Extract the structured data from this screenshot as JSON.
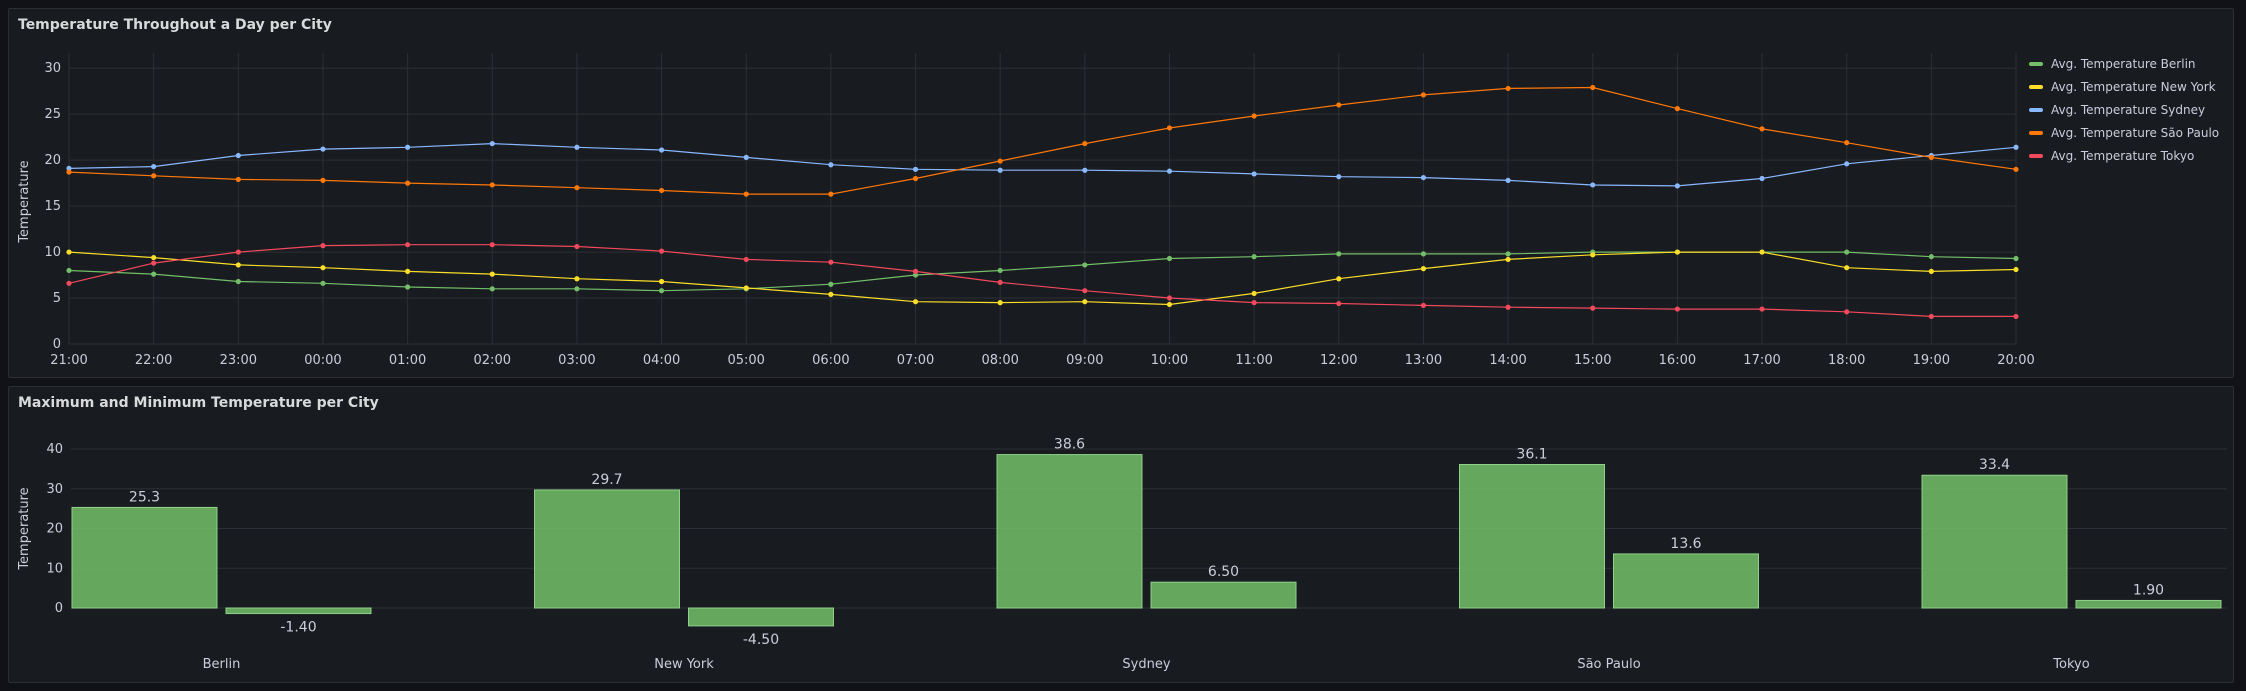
{
  "panels": [
    {
      "title": "Temperature Throughout a Day per City",
      "chart_data": {
        "type": "line",
        "ylabel": "Temperature",
        "xlabel": "",
        "ylim": [
          0,
          31
        ],
        "y_ticks": [
          0,
          5,
          10,
          15,
          20,
          25,
          30
        ],
        "x": [
          "21:00",
          "22:00",
          "23:00",
          "00:00",
          "01:00",
          "02:00",
          "03:00",
          "04:00",
          "05:00",
          "06:00",
          "07:00",
          "08:00",
          "09:00",
          "10:00",
          "11:00",
          "12:00",
          "13:00",
          "14:00",
          "15:00",
          "16:00",
          "17:00",
          "18:00",
          "19:00",
          "20:00"
        ],
        "legend_position": "right",
        "grid": true,
        "series": [
          {
            "name": "Avg. Temperature Berlin",
            "color": "#73bf69",
            "values": [
              8.0,
              7.6,
              6.8,
              6.6,
              6.2,
              6.0,
              6.0,
              5.8,
              6.0,
              6.5,
              7.5,
              8.0,
              8.6,
              9.3,
              9.5,
              9.8,
              9.8,
              9.8,
              10.0,
              10.0,
              10.0,
              10.0,
              9.5,
              9.3
            ]
          },
          {
            "name": "Avg. Temperature New York",
            "color": "#fade2a",
            "values": [
              10.0,
              9.4,
              8.6,
              8.3,
              7.9,
              7.6,
              7.1,
              6.8,
              6.1,
              5.4,
              4.6,
              4.5,
              4.6,
              4.3,
              5.5,
              7.1,
              8.2,
              9.2,
              9.7,
              10.0,
              10.0,
              8.3,
              7.9,
              8.1
            ]
          },
          {
            "name": "Avg. Temperature Sydney",
            "color": "#8ab8ff",
            "values": [
              19.1,
              19.3,
              20.5,
              21.2,
              21.4,
              21.8,
              21.4,
              21.1,
              20.3,
              19.5,
              19.0,
              18.9,
              18.9,
              18.8,
              18.5,
              18.2,
              18.1,
              17.8,
              17.3,
              17.2,
              18.0,
              19.6,
              20.5,
              21.4
            ]
          },
          {
            "name": "Avg. Temperature São Paulo",
            "color": "#ff780a",
            "values": [
              18.7,
              18.3,
              17.9,
              17.8,
              17.5,
              17.3,
              17.0,
              16.7,
              16.3,
              16.3,
              18.0,
              19.9,
              21.8,
              23.5,
              24.8,
              26.0,
              27.1,
              27.8,
              27.9,
              25.6,
              23.4,
              21.9,
              20.3,
              19.0
            ]
          },
          {
            "name": "Avg. Temperature Tokyo",
            "color": "#f2495c",
            "values": [
              6.6,
              8.8,
              10.0,
              10.7,
              10.8,
              10.8,
              10.6,
              10.1,
              9.2,
              8.9,
              7.9,
              6.7,
              5.8,
              5.0,
              4.5,
              4.4,
              4.2,
              4.0,
              3.9,
              3.8,
              3.8,
              3.5,
              3.0,
              3.0
            ]
          }
        ]
      }
    },
    {
      "title": "Maximum and Minimum Temperature per City",
      "chart_data": {
        "type": "bar",
        "ylabel": "Temperature",
        "xlabel": "",
        "ylim": [
          -5,
          43
        ],
        "y_ticks": [
          0,
          10,
          20,
          30,
          40
        ],
        "categories": [
          "Berlin",
          "New York",
          "Sydney",
          "São Paulo",
          "Tokyo"
        ],
        "bar_color": "#73bf69",
        "grid": true,
        "series": [
          {
            "values": [
              25.3,
              29.7,
              38.6,
              36.1,
              33.4
            ],
            "labels": [
              "25.3",
              "29.7",
              "38.6",
              "36.1",
              "33.4"
            ]
          },
          {
            "values": [
              -1.4,
              -4.5,
              6.5,
              13.6,
              1.9
            ],
            "labels": [
              "-1.40",
              "-4.50",
              "6.50",
              "13.6",
              "1.90"
            ]
          }
        ]
      }
    }
  ]
}
